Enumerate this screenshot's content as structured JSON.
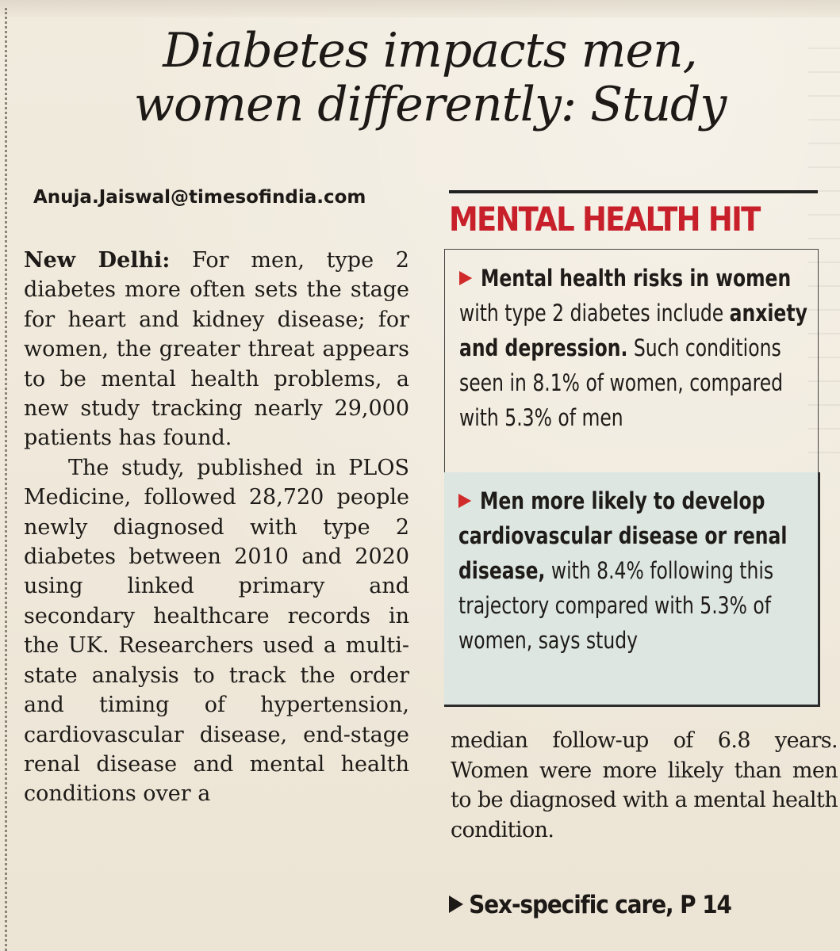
{
  "article": {
    "headline_line1": "Diabetes impacts men,",
    "headline_line2": "women differently: Study",
    "byline": "Anuja.Jaiswal@timesofindia.com",
    "dateline": "New Delhi:",
    "para1": "For men, type 2 diabetes more often sets the stage for heart and kidney disease; for women, the greater threat appears to be mental health problems, a new study tracking nearly 29,000 patients has found.",
    "para2": "The study, published in PLOS Medicine, followed 28,720 people newly diagnosed with type 2 diabetes between 2010 and 2020 using linked primary and secondary healthcare records in the UK. Researchers used a multi-state analysis to track the order and timing of hypertension, cardiovascular disease, end-stage renal disease and mental health conditions over a",
    "continuation": "median follow-up of 6.8 years. Women were more likely than men to be diagnosed with a mental health condition.",
    "jump_text": "Sex-specific care, P 14"
  },
  "sidebar": {
    "title": "MENTAL HEALTH HIT",
    "point1": {
      "bold_lead": "Mental health risks in women",
      "text_a": " with type 2 diabetes include ",
      "bold_mid": "anxiety and depression.",
      "text_b": " Such conditions seen in 8.1% of women, compared with 5.3% of men"
    },
    "point2": {
      "bold_lead": "Men more likely to develop cardiovascular disease or renal disease,",
      "text": " with 8.4% following this trajectory compared with 5.3% of women, says study"
    }
  },
  "colors": {
    "paper": "#f3ede1",
    "accent_red": "#c8202b",
    "box_tint": "#dde6e0"
  }
}
